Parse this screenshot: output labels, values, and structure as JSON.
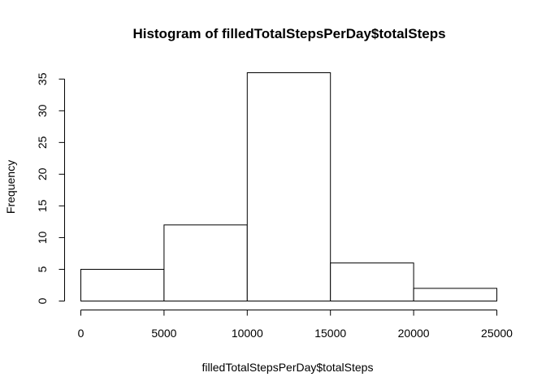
{
  "chart_data": {
    "type": "bar",
    "title": "Histogram of filledTotalStepsPerDay$totalSteps",
    "xlabel": "filledTotalStepsPerDay$totalSteps",
    "ylabel": "Frequency",
    "bins": [
      {
        "start": 0,
        "end": 5000,
        "count": 5
      },
      {
        "start": 5000,
        "end": 10000,
        "count": 12
      },
      {
        "start": 10000,
        "end": 15000,
        "count": 36
      },
      {
        "start": 15000,
        "end": 20000,
        "count": 6
      },
      {
        "start": 20000,
        "end": 25000,
        "count": 2
      }
    ],
    "xlim": [
      0,
      25000
    ],
    "ylim": [
      0,
      36
    ],
    "x_ticks": [
      0,
      5000,
      10000,
      15000,
      20000,
      25000
    ],
    "y_ticks": [
      0,
      5,
      10,
      15,
      20,
      25,
      30,
      35
    ],
    "grid": false,
    "bar_fill": "#ffffff",
    "bar_stroke": "#000000"
  }
}
